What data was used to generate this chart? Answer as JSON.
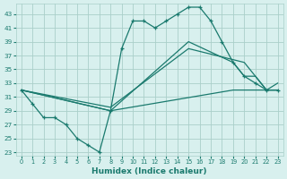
{
  "xlabel": "Humidex (Indice chaleur)",
  "bg_color": "#d8f0ee",
  "grid_color": "#aacfca",
  "line_color": "#1a7a6e",
  "xlim": [
    -0.5,
    23.5
  ],
  "ylim": [
    22.5,
    44.5
  ],
  "yticks": [
    23,
    25,
    27,
    29,
    31,
    33,
    35,
    37,
    39,
    41,
    43
  ],
  "xticks": [
    0,
    1,
    2,
    3,
    4,
    5,
    6,
    7,
    8,
    9,
    10,
    11,
    12,
    13,
    14,
    15,
    16,
    17,
    18,
    19,
    20,
    21,
    22,
    23
  ],
  "line_main_x": [
    0,
    1,
    2,
    3,
    4,
    5,
    6,
    7,
    8,
    9,
    10,
    11,
    12,
    13,
    14,
    15,
    16,
    17,
    18,
    19,
    20,
    21,
    22,
    23
  ],
  "line_main_y": [
    32,
    30,
    28,
    28,
    27,
    25,
    24,
    23,
    29,
    38,
    42,
    42,
    41,
    42,
    43,
    44,
    44,
    42,
    39,
    36,
    34,
    33,
    32,
    32
  ],
  "line2_x": [
    0,
    8,
    15,
    19,
    20,
    21,
    22,
    23
  ],
  "line2_y": [
    32,
    29,
    39,
    36,
    34,
    34,
    32,
    32
  ],
  "line3_x": [
    0,
    8,
    15,
    20,
    22,
    23
  ],
  "line3_y": [
    32,
    29.5,
    38,
    36,
    32,
    32
  ],
  "line4_x": [
    0,
    8,
    19,
    22,
    23
  ],
  "line4_y": [
    32,
    29,
    32,
    32,
    33
  ]
}
